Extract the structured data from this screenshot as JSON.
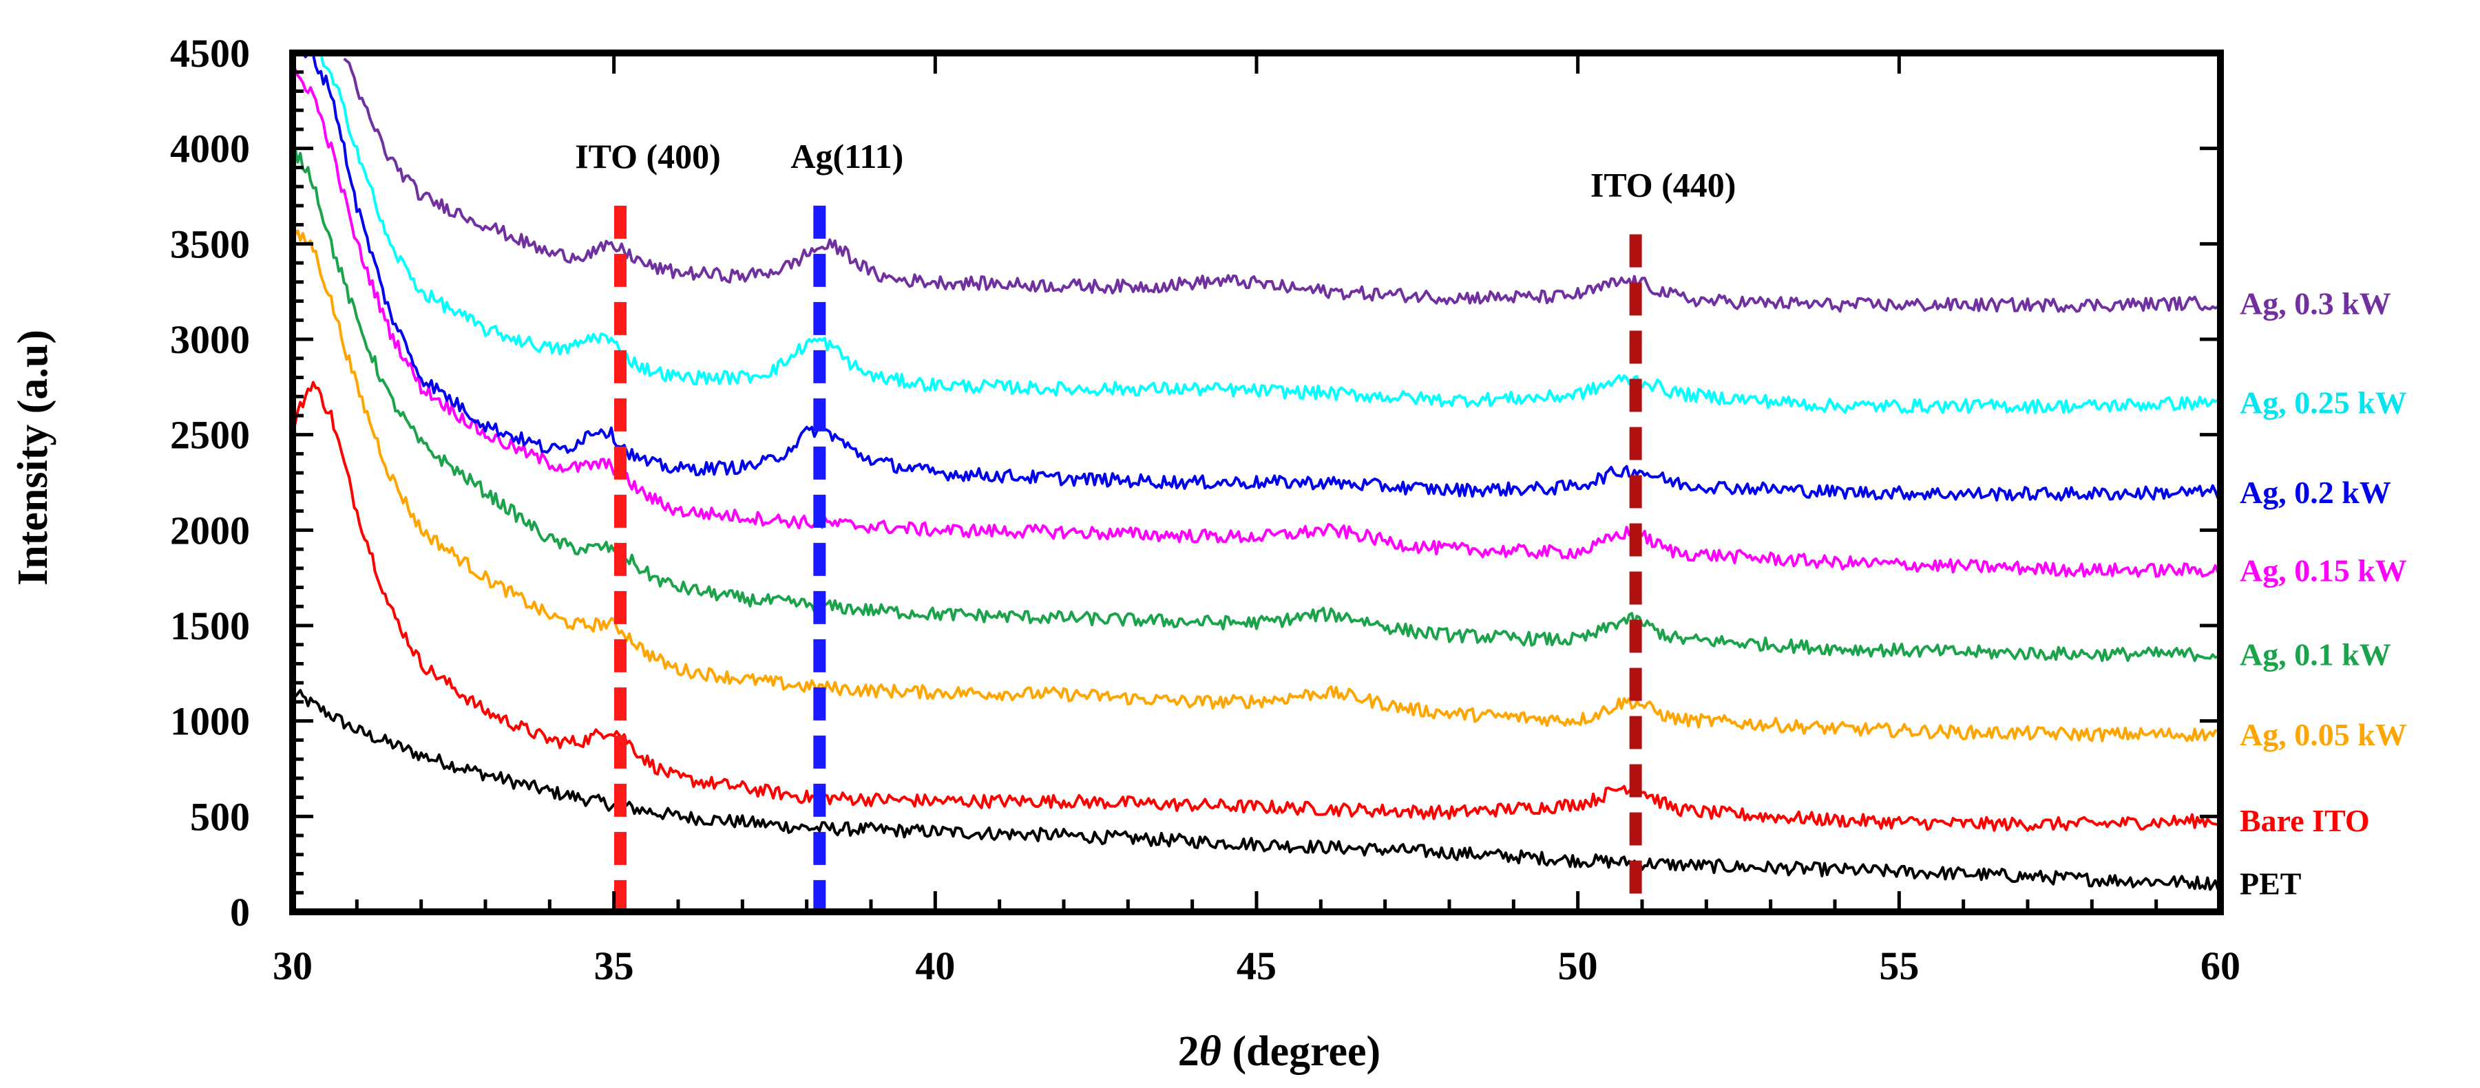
{
  "chart_data": {
    "type": "line",
    "title": "",
    "xlabel_prefix": "2",
    "xlabel_symbol": "θ",
    "xlabel_suffix": " (degree)",
    "ylabel": "Intensity (a.u)",
    "xlim": [
      30,
      60
    ],
    "ylim": [
      0,
      4500
    ],
    "x_ticks": [
      30,
      35,
      40,
      45,
      50,
      55,
      60
    ],
    "y_ticks": [
      0,
      500,
      1000,
      1500,
      2000,
      2500,
      3000,
      3500,
      4000,
      4500
    ],
    "grid": false,
    "reference_lines": [
      {
        "label": "ITO (400)",
        "x": 35.1,
        "color": "#ff1a1a",
        "y_top": 3700
      },
      {
        "label": "Ag(111)",
        "x": 38.2,
        "color": "#1a1aff",
        "y_top": 3700
      },
      {
        "label": "ITO (440)",
        "x": 50.9,
        "color": "#b01010",
        "y_top": 3550
      }
    ],
    "series": [
      {
        "name": "PET",
        "color": "#000000",
        "label_color": "#000000",
        "x": [
          30,
          31,
          32,
          33,
          34,
          35,
          36,
          37,
          38,
          39,
          40,
          42,
          44,
          46,
          48,
          50,
          52,
          54,
          56,
          58,
          60
        ],
        "y": [
          1150,
          950,
          820,
          720,
          630,
          560,
          500,
          470,
          440,
          430,
          420,
          400,
          370,
          340,
          310,
          270,
          240,
          220,
          200,
          170,
          150
        ],
        "peaks": []
      },
      {
        "name": "Bare ITO",
        "color": "#ff0000",
        "label_color": "#ff0000",
        "x": [
          30,
          30.3,
          30.6,
          31,
          31.5,
          32,
          33,
          34,
          35,
          36,
          37,
          38,
          39,
          40,
          42,
          44,
          46,
          48,
          50,
          52,
          54,
          56,
          58,
          60
        ],
        "y": [
          2550,
          2780,
          2600,
          2100,
          1600,
          1300,
          1050,
          900,
          850,
          700,
          650,
          600,
          590,
          580,
          580,
          560,
          540,
          520,
          560,
          520,
          480,
          460,
          460,
          480
        ],
        "peaks": [
          {
            "x": 35.0,
            "h": 100,
            "w": 0.4
          },
          {
            "x": 50.8,
            "h": 110,
            "w": 0.5
          }
        ]
      },
      {
        "name": "Ag, 0.05 kW",
        "color": "#ffa500",
        "label_color": "#ffa500",
        "x": [
          30,
          30.3,
          30.6,
          31,
          31.5,
          32,
          33,
          34,
          35,
          36,
          37,
          38,
          39,
          40,
          42,
          44,
          46,
          48,
          50,
          52,
          54,
          56,
          58,
          60
        ],
        "y": [
          3550,
          3500,
          3200,
          2750,
          2300,
          2000,
          1750,
          1550,
          1420,
          1270,
          1220,
          1180,
          1160,
          1150,
          1140,
          1100,
          1100,
          1040,
          1000,
          1000,
          960,
          940,
          930,
          930
        ],
        "peaks": [
          {
            "x": 35.0,
            "h": 80,
            "w": 0.4
          },
          {
            "x": 46.2,
            "h": 50,
            "w": 0.8
          },
          {
            "x": 50.8,
            "h": 100,
            "w": 0.5
          }
        ]
      },
      {
        "name": "Ag, 0.1 kW",
        "color": "#1aa34a",
        "label_color": "#1aa34a",
        "x": [
          30,
          30.3,
          30.6,
          31,
          31.5,
          32,
          33,
          34,
          35,
          36,
          37,
          38,
          39,
          40,
          42,
          44,
          46,
          48,
          50,
          52,
          54,
          56,
          58,
          60
        ],
        "y": [
          4000,
          3850,
          3500,
          3100,
          2700,
          2450,
          2200,
          1950,
          1820,
          1700,
          1640,
          1610,
          1580,
          1560,
          1540,
          1520,
          1500,
          1450,
          1420,
          1420,
          1380,
          1360,
          1350,
          1350
        ],
        "peaks": [
          {
            "x": 35.0,
            "h": 80,
            "w": 0.4
          },
          {
            "x": 46.2,
            "h": 60,
            "w": 0.8
          },
          {
            "x": 50.8,
            "h": 110,
            "w": 0.5
          }
        ]
      },
      {
        "name": "Ag, 0.15 kW",
        "color": "#ff00ff",
        "label_color": "#ff00ff",
        "x": [
          30,
          30.3,
          30.6,
          31,
          31.5,
          32,
          33,
          34,
          35,
          36,
          37,
          38,
          39,
          40,
          42,
          44,
          46,
          48,
          50,
          52,
          54,
          56,
          58,
          60
        ],
        "y": [
          4400,
          4300,
          4000,
          3500,
          3050,
          2750,
          2500,
          2350,
          2250,
          2100,
          2070,
          2040,
          2020,
          2000,
          1990,
          1970,
          1950,
          1900,
          1880,
          1870,
          1830,
          1810,
          1790,
          1790
        ],
        "peaks": [
          {
            "x": 34.9,
            "h": 80,
            "w": 0.4
          },
          {
            "x": 46.2,
            "h": 50,
            "w": 0.8
          },
          {
            "x": 50.8,
            "h": 110,
            "w": 0.5
          }
        ]
      },
      {
        "name": "Ag, 0.2 kW",
        "color": "#0000ee",
        "label_color": "#0000ee",
        "x": [
          30,
          30.3,
          30.6,
          31,
          31.5,
          32,
          33,
          34,
          35,
          36,
          37,
          38,
          39,
          40,
          42,
          44,
          46,
          48,
          50,
          52,
          54,
          56,
          58,
          60
        ],
        "y": [
          4500,
          4480,
          4300,
          3700,
          3150,
          2800,
          2550,
          2420,
          2380,
          2320,
          2330,
          2380,
          2360,
          2300,
          2270,
          2250,
          2250,
          2210,
          2220,
          2230,
          2200,
          2190,
          2190,
          2200
        ],
        "peaks": [
          {
            "x": 34.8,
            "h": 140,
            "w": 0.4
          },
          {
            "x": 38.2,
            "h": 150,
            "w": 0.5
          },
          {
            "x": 50.8,
            "h": 90,
            "w": 0.6
          }
        ]
      },
      {
        "name": "Ag, 0.25 kW",
        "color": "#00ffff",
        "label_color": "#00e5ee",
        "x": [
          30.4,
          30.7,
          31,
          31.5,
          32,
          33,
          34,
          35,
          36,
          37,
          38,
          39,
          40,
          42,
          44,
          46,
          48,
          50,
          52,
          54,
          56,
          58,
          60
        ],
        "y": [
          4500,
          4300,
          4000,
          3500,
          3250,
          3050,
          2950,
          2880,
          2800,
          2800,
          2850,
          2800,
          2760,
          2740,
          2740,
          2720,
          2680,
          2700,
          2700,
          2650,
          2650,
          2650,
          2670
        ],
        "peaks": [
          {
            "x": 34.8,
            "h": 120,
            "w": 0.4
          },
          {
            "x": 38.2,
            "h": 150,
            "w": 0.5
          },
          {
            "x": 50.8,
            "h": 90,
            "w": 0.6
          }
        ]
      },
      {
        "name": "Ag, 0.3 kW",
        "color": "#7030a0",
        "label_color": "#7030a0",
        "x": [
          30.8,
          31,
          31.5,
          32,
          33,
          34,
          35,
          36,
          37,
          38,
          39,
          40,
          42,
          44,
          46,
          48,
          50,
          52,
          54,
          56,
          58,
          60
        ],
        "y": [
          4500,
          4300,
          3950,
          3750,
          3600,
          3450,
          3400,
          3350,
          3330,
          3380,
          3320,
          3300,
          3280,
          3270,
          3250,
          3220,
          3220,
          3200,
          3180,
          3180,
          3180,
          3190
        ],
        "peaks": [
          {
            "x": 35.0,
            "h": 80,
            "w": 0.4
          },
          {
            "x": 38.4,
            "h": 130,
            "w": 0.5
          },
          {
            "x": 44.6,
            "h": 40,
            "w": 0.9
          },
          {
            "x": 50.8,
            "h": 90,
            "w": 0.6
          }
        ]
      }
    ],
    "legend_placement": "right-of-plot, labels beside each curve"
  }
}
